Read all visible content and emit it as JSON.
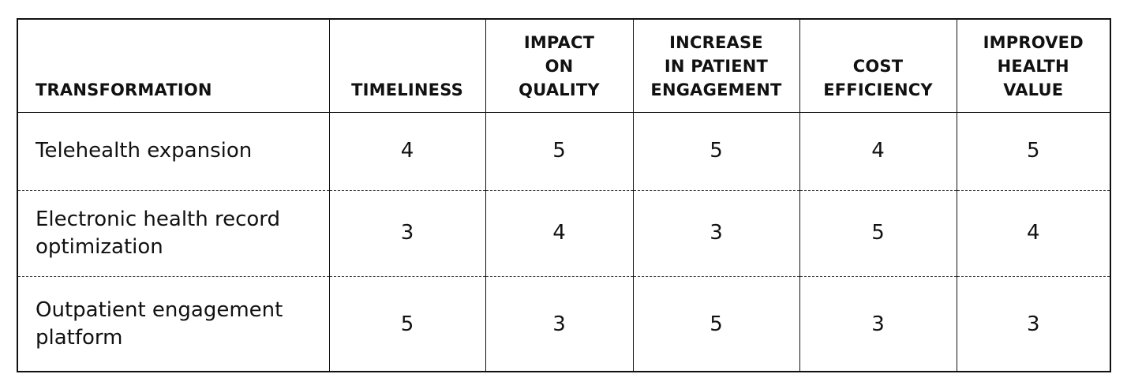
{
  "table": {
    "headers": [
      [
        "TRANSFORMATION"
      ],
      [
        "TIMELINESS"
      ],
      [
        "IMPACT",
        "ON",
        "QUALITY"
      ],
      [
        "INCREASE",
        "IN PATIENT",
        "ENGAGEMENT"
      ],
      [
        "COST",
        "EFFICIENCY"
      ],
      [
        "IMPROVED",
        "HEALTH",
        "VALUE"
      ]
    ],
    "rows": [
      {
        "name": "Telehealth expansion",
        "values": [
          "4",
          "5",
          "5",
          "4",
          "5"
        ]
      },
      {
        "name": "Electronic health record optimization",
        "values": [
          "3",
          "4",
          "3",
          "5",
          "4"
        ]
      },
      {
        "name": "Outpatient engagement platform",
        "values": [
          "5",
          "3",
          "5",
          "3",
          "3"
        ]
      }
    ]
  }
}
